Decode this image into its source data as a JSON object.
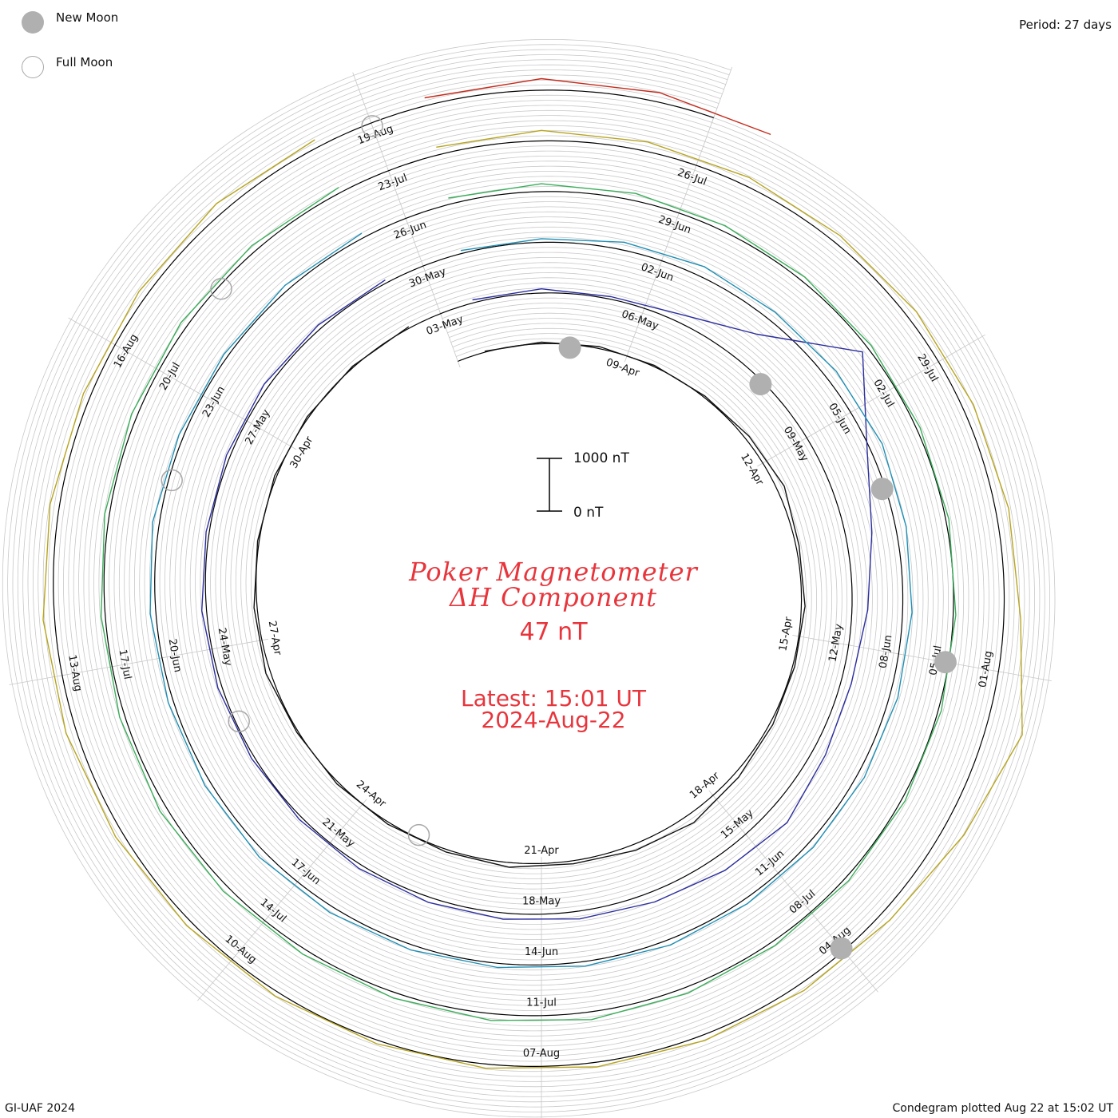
{
  "header": {
    "new_moon_label": "New Moon",
    "full_moon_label": "Full Moon",
    "period_label": "Period: 27 days"
  },
  "footer": {
    "credit": "GI-UAF 2024",
    "plotted": "Condegram plotted Aug 22 at 15:02 UT"
  },
  "center": {
    "title_line1": "Poker Magnetometer",
    "title_line2": "ΔH Component",
    "current_value": "47 nT",
    "latest_time": "Latest: 15:01 UT",
    "latest_date": "2024-Aug-22"
  },
  "colors": {
    "grid": "#c8c8c8",
    "baseline": "#000000",
    "title": "#e8353c",
    "new_moon": "#b0b0b0",
    "full_moon": "#a8a8a8"
  },
  "chart_data": {
    "type": "line",
    "layout": "condegram-spiral",
    "period_days": 27,
    "scale_bar": {
      "top_label": "1000 nT",
      "bottom_label": "0 nT",
      "top_value_nT": 1000,
      "bottom_value_nT": 0
    },
    "rotations": [
      {
        "color": "#111111",
        "start_date": "2024-04-06",
        "end_date": "2024-05-03",
        "tick_labels": [
          "09-Apr",
          "12-Apr",
          "15-Apr",
          "18-Apr",
          "21-Apr",
          "24-Apr",
          "27-Apr",
          "30-Apr",
          "03-May"
        ],
        "daily_dH_nT": [
          20,
          30,
          40,
          25,
          30,
          80,
          150,
          60,
          70,
          40,
          60,
          100,
          180,
          120,
          60,
          90,
          50,
          40,
          40,
          30,
          90,
          60,
          30,
          40,
          30,
          25,
          30
        ]
      },
      {
        "color": "#2b2d9e",
        "start_date": "2024-05-03",
        "end_date": "2024-05-30",
        "tick_labels": [
          "06-May",
          "09-May",
          "12-May",
          "15-May",
          "18-May",
          "21-May",
          "24-May",
          "27-May",
          "30-May"
        ],
        "daily_dH_nT": [
          60,
          80,
          50,
          150,
          600,
          1800,
          900,
          500,
          300,
          200,
          250,
          400,
          300,
          200,
          150,
          120,
          100,
          80,
          60,
          60,
          80,
          90,
          60,
          70,
          90,
          80,
          60
        ]
      },
      {
        "color": "#1f8fb5",
        "start_date": "2024-05-30",
        "end_date": "2024-06-26",
        "tick_labels": [
          "02-Jun",
          "05-Jun",
          "08-Jun",
          "11-Jun",
          "14-Jun",
          "17-Jun",
          "20-Jun",
          "23-Jun",
          "26-Jun"
        ],
        "daily_dH_nT": [
          60,
          70,
          150,
          200,
          180,
          220,
          250,
          200,
          180,
          160,
          140,
          120,
          100,
          110,
          90,
          80,
          100,
          120,
          140,
          120,
          100,
          110,
          130,
          90,
          80,
          100,
          90
        ]
      },
      {
        "color": "#3aad5a",
        "start_date": "2024-06-26",
        "end_date": "2024-07-23",
        "tick_labels": [
          "29-Jun",
          "02-Jul",
          "05-Jul",
          "08-Jul",
          "11-Jul",
          "14-Jul",
          "17-Jul",
          "20-Jul",
          "23-Jul"
        ],
        "daily_dH_nT": [
          120,
          150,
          140,
          110,
          90,
          80,
          70,
          60,
          50,
          60,
          70,
          80,
          90,
          120,
          150,
          130,
          110,
          100,
          120,
          140,
          100,
          80,
          90,
          110,
          130,
          120,
          100
        ]
      },
      {
        "color": "#b8a520",
        "start_date": "2024-07-23",
        "end_date": "2024-08-19",
        "tick_labels": [
          "26-Jul",
          "29-Jul",
          "01-Aug",
          "04-Aug",
          "07-Aug",
          "10-Aug",
          "13-Aug",
          "16-Aug",
          "19-Aug"
        ],
        "daily_dH_nT": [
          150,
          200,
          180,
          170,
          160,
          190,
          210,
          250,
          320,
          700,
          400,
          200,
          140,
          110,
          90,
          80,
          70,
          90,
          110,
          150,
          200,
          220,
          180,
          140,
          160,
          200,
          150
        ]
      },
      {
        "color": "#c42b1c",
        "start_date": "2024-08-19",
        "end_date": "2024-08-22",
        "tick_labels": [],
        "daily_dH_nT": [
          150,
          220,
          180,
          120
        ]
      }
    ],
    "new_moon_dates": [
      "2024-04-08",
      "2024-05-08",
      "2024-06-06",
      "2024-07-05",
      "2024-08-04"
    ],
    "full_moon_dates": [
      "2024-04-23",
      "2024-05-23",
      "2024-06-22",
      "2024-07-21",
      "2024-08-19"
    ]
  }
}
